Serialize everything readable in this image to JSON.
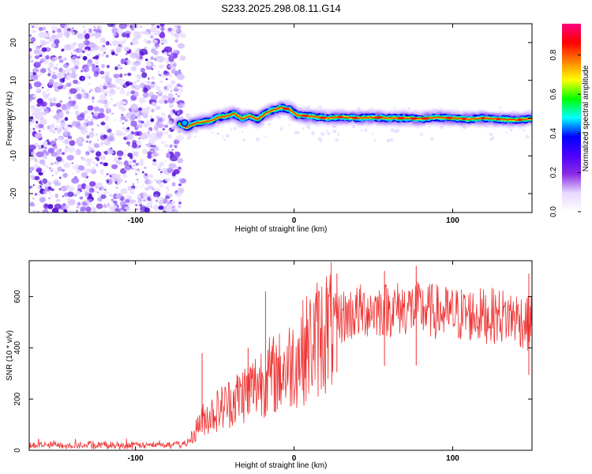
{
  "title": "S233.2025.298.08.11.G14",
  "chart_data": [
    {
      "type": "heatmap",
      "panel": "spectrogram",
      "xlabel": "Height of straight line (km)",
      "ylabel": "Frequency (Hz)",
      "xlim": [
        -167,
        150
      ],
      "ylim": [
        -25,
        25
      ],
      "xticks": [
        -100,
        0,
        100
      ],
      "yticks": [
        -20,
        -10,
        0,
        10,
        20
      ],
      "noise_region_x": [
        -167,
        -72
      ],
      "colorbar": {
        "label": "Normalized spectral amplitude",
        "range": [
          0,
          0.96
        ],
        "ticks": [
          0.0,
          0.2,
          0.4,
          0.6,
          0.8
        ],
        "colormap": [
          "#ffffff",
          "#e6d8ff",
          "#8a2be2",
          "#4b00ff",
          "#0000ff",
          "#00ffff",
          "#00ff00",
          "#ffff00",
          "#ff8000",
          "#ff0000",
          "#ff0080"
        ]
      },
      "ridge": {
        "x": [
          -72,
          -68,
          -63,
          -58,
          -53,
          -48,
          -43,
          -38,
          -33,
          -28,
          -23,
          -18,
          -13,
          -8,
          -3,
          2,
          10,
          20,
          30,
          40,
          50,
          60,
          70,
          80,
          90,
          100,
          110,
          120,
          130,
          140,
          150
        ],
        "freq": [
          -1.5,
          -2.5,
          -1.5,
          -1.0,
          -0.8,
          0.2,
          0.5,
          1.2,
          -0.2,
          0.6,
          -0.3,
          1.2,
          2.2,
          2.8,
          2.3,
          0.8,
          0.5,
          0.0,
          0.3,
          0.0,
          0.2,
          0.0,
          0.0,
          -0.2,
          0.2,
          0.0,
          -0.3,
          0.0,
          -0.3,
          -0.5,
          -0.2
        ]
      }
    },
    {
      "type": "line",
      "panel": "snr",
      "xlabel": "Height of straight line (km)",
      "ylabel": "SNR (10 * v/v)",
      "xlim": [
        -167,
        150
      ],
      "ylim": [
        0,
        740
      ],
      "xticks": [
        -100,
        0,
        100
      ],
      "yticks": [
        0,
        200,
        400,
        600
      ],
      "series": [
        {
          "name": "SNR",
          "color": "#ee3333",
          "x": [
            -167,
            -140,
            -110,
            -80,
            -68,
            -63,
            -60,
            -55,
            -50,
            -45,
            -40,
            -35,
            -30,
            -25,
            -20,
            -15,
            -10,
            -5,
            0,
            5,
            10,
            15,
            20,
            25,
            30,
            40,
            50,
            60,
            70,
            80,
            90,
            100,
            110,
            120,
            130,
            140,
            148,
            150
          ],
          "baseline": [
            20,
            20,
            20,
            20,
            25,
            60,
            110,
            130,
            150,
            170,
            190,
            210,
            230,
            250,
            280,
            290,
            300,
            320,
            350,
            380,
            410,
            440,
            470,
            500,
            520,
            540,
            550,
            550,
            555,
            550,
            540,
            530,
            530,
            525,
            525,
            520,
            490,
            500
          ],
          "spikes": [
            {
              "x": -58,
              "y": 380
            },
            {
              "x": -29,
              "y": 400
            },
            {
              "x": -18,
              "y": 620
            },
            {
              "x": 27,
              "y": 690
            },
            {
              "x": 57,
              "y": 700
            },
            {
              "x": 77,
              "y": 720
            },
            {
              "x": 148,
              "y": 690
            }
          ]
        }
      ]
    }
  ]
}
